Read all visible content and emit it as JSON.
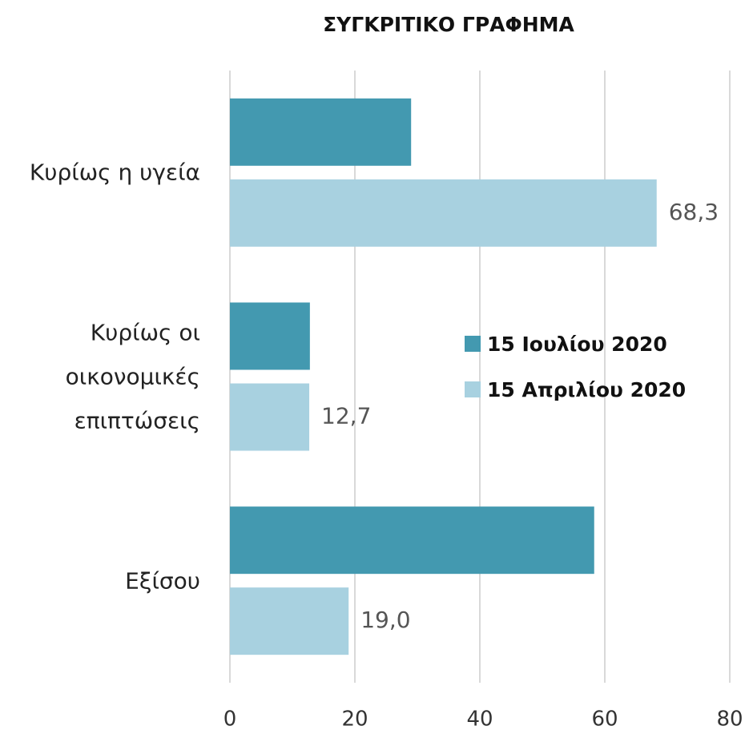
{
  "chart_data": {
    "type": "hbar",
    "title": "ΣΥΓΚΡΙΤΙΚΟ ΓΡΑΦΗΜΑ",
    "categories": [
      "Κυρίως η υγεία",
      "Κυρίως οι οικονομικές επιπτώσεις",
      "Εξίσου"
    ],
    "series": [
      {
        "name": "15 Ιουλίου 2020",
        "color": "#4399b0",
        "values": [
          29.0,
          12.8,
          58.3
        ]
      },
      {
        "name": "15 Απριλίου 2020",
        "color": "#a8d1e0",
        "values": [
          68.3,
          12.7,
          19.0
        ],
        "value_labels": [
          "68,3",
          "12,7",
          "19,0"
        ]
      }
    ],
    "xlim": [
      0,
      80
    ],
    "xticks": [
      0,
      20,
      40,
      60,
      80
    ],
    "grid": true
  }
}
